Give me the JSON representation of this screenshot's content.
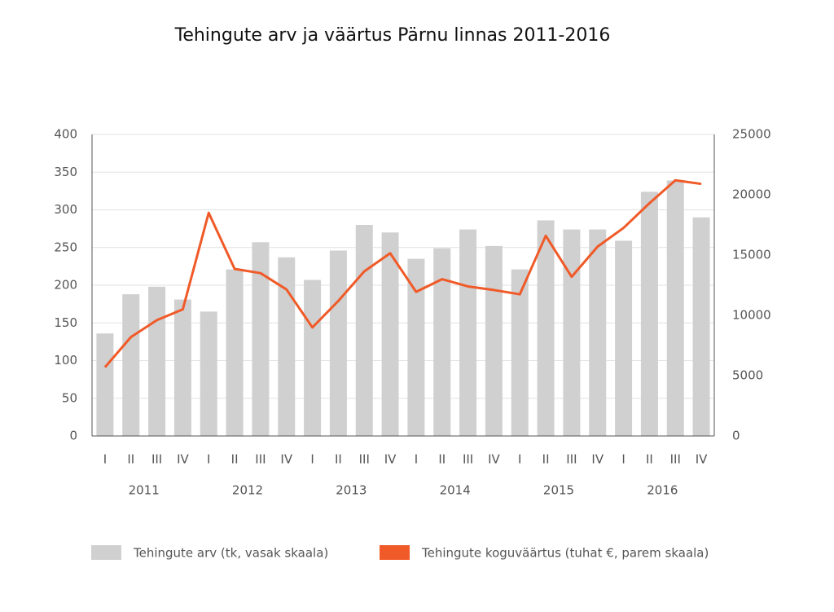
{
  "chart_data": {
    "type": "bar-line",
    "title": "Tehingute arv ja väärtus Pärnu linnas 2011-2016",
    "categories": [
      "I",
      "II",
      "III",
      "IV",
      "I",
      "II",
      "III",
      "IV",
      "I",
      "II",
      "III",
      "IV",
      "I",
      "II",
      "III",
      "IV",
      "I",
      "II",
      "III",
      "IV",
      "I",
      "II",
      "III",
      "IV"
    ],
    "category_groups": [
      "2011",
      "2012",
      "2013",
      "2014",
      "2015",
      "2016"
    ],
    "series": [
      {
        "name": "Tehingute arv (tk, vasak skaala)",
        "type": "bar",
        "color": "#d0d0d0",
        "values": [
          136,
          188,
          198,
          181,
          165,
          221,
          257,
          237,
          207,
          246,
          280,
          270,
          235,
          249,
          274,
          252,
          221,
          286,
          274,
          274,
          259,
          324,
          339,
          290
        ]
      },
      {
        "name": "Tehingute koguväärtus (tuhat €, parem skaala)",
        "type": "line",
        "color": "#f05a28",
        "axis": "y2",
        "values": [
          5700,
          8200,
          9600,
          10500,
          18500,
          13850,
          13500,
          12150,
          9000,
          11200,
          13650,
          15150,
          11950,
          13000,
          12400,
          12100,
          11750,
          16600,
          13200,
          15700,
          17250,
          19300,
          21200,
          20900
        ]
      }
    ],
    "ylim": [
      0,
      400
    ],
    "yticks": [
      0,
      50,
      100,
      150,
      200,
      250,
      300,
      350,
      400
    ],
    "y2lim": [
      0,
      25000
    ],
    "y2ticks": [
      0,
      5000,
      10000,
      15000,
      20000,
      25000
    ],
    "grid": true,
    "legend": "bottom"
  }
}
